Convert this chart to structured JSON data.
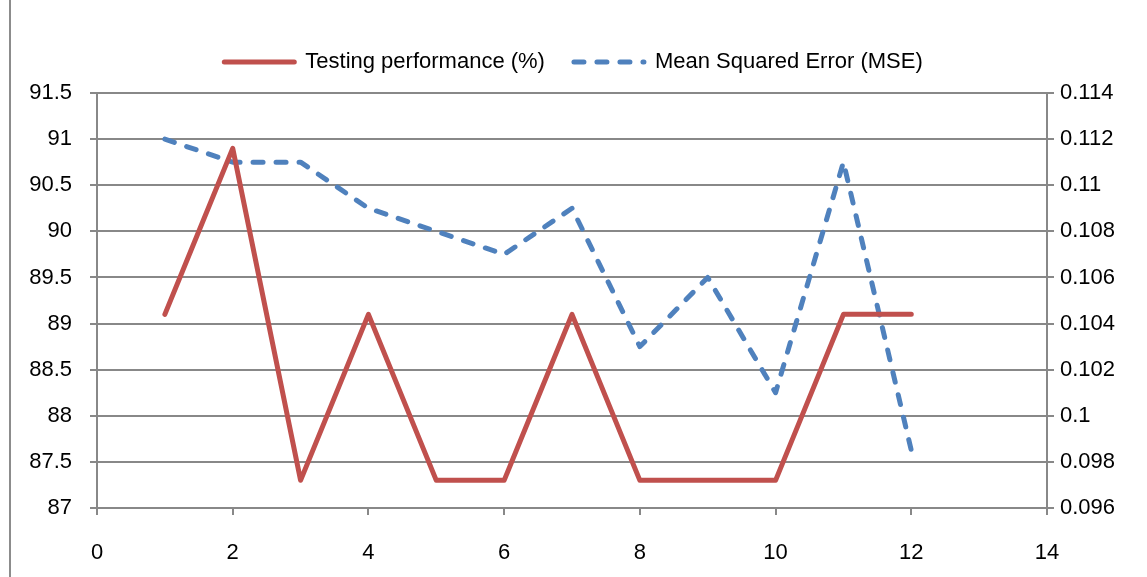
{
  "chart_data": {
    "type": "line",
    "x": [
      1,
      2,
      3,
      4,
      5,
      6,
      7,
      8,
      9,
      10,
      11,
      12
    ],
    "series": [
      {
        "name": "Testing performance (%)",
        "color": "#c0504d",
        "line_style": "solid",
        "values": [
          89.1,
          90.9,
          87.3,
          89.1,
          87.3,
          87.3,
          89.1,
          87.3,
          87.3,
          87.3,
          89.1,
          89.1
        ]
      },
      {
        "name": "Mean Squared Error (MSE)",
        "color": "#4f81bd",
        "line_style": "dashed",
        "axis": "y2",
        "values": [
          0.112,
          0.111,
          0.111,
          0.109,
          0.108,
          0.107,
          0.109,
          0.103,
          0.106,
          0.101,
          0.111,
          0.0985
        ]
      }
    ],
    "xlim": [
      0,
      14
    ],
    "xticks": [
      0,
      2,
      4,
      6,
      8,
      10,
      12,
      14
    ],
    "ylim": [
      87,
      91.5
    ],
    "yticks": [
      87,
      87.5,
      88,
      88.5,
      89,
      89.5,
      90,
      90.5,
      91,
      91.5
    ],
    "y2lim": [
      0.096,
      0.114
    ],
    "y2ticks": [
      0.096,
      0.098,
      0.1,
      0.102,
      0.104,
      0.106,
      0.108,
      0.11,
      0.112,
      0.114
    ],
    "grid": "y",
    "legend": "top",
    "marker": "none"
  }
}
